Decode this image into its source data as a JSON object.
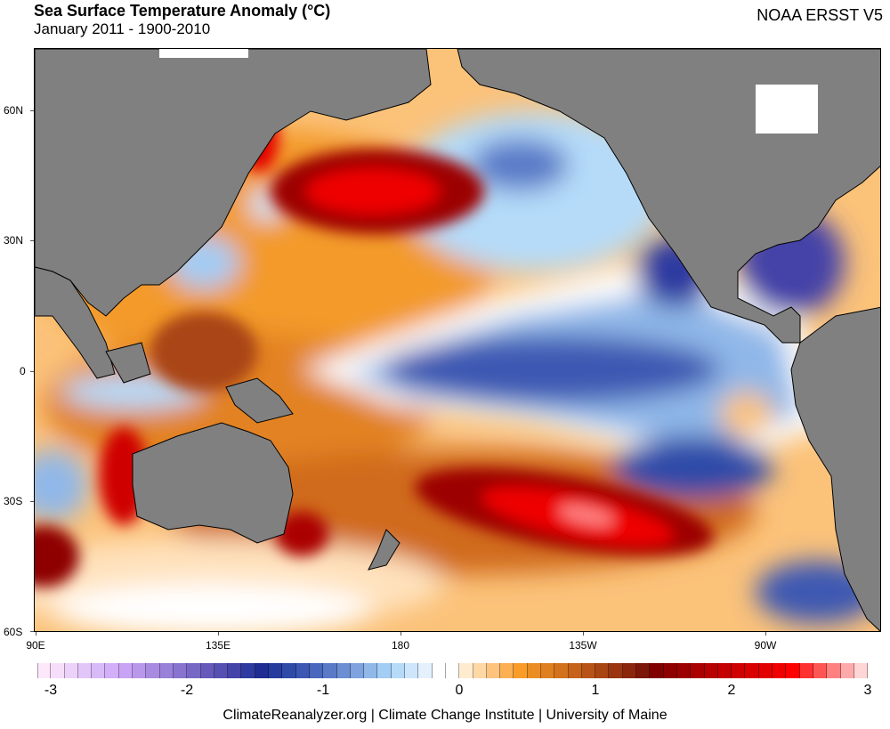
{
  "header": {
    "title": "Sea Surface Temperature Anomaly (°C)",
    "subtitle": "January 2011 - 1900-2010",
    "source": "NOAA ERSST V5"
  },
  "map": {
    "y_axis_labels": [
      "60N",
      "30N",
      "0",
      "30S",
      "60S"
    ],
    "x_axis_labels": [
      "90E",
      "135E",
      "180",
      "135W",
      "90W"
    ],
    "land_color": "#808080",
    "features": [
      {
        "name": "north-pacific-warm-anomaly",
        "value": 2.6
      },
      {
        "name": "south-pacific-warm-anomaly",
        "value": 3.0
      },
      {
        "name": "equatorial-pacific-cold-tongue",
        "value": -1.7
      },
      {
        "name": "sea-of-okhotsk-warm-anomaly",
        "value": 2.6
      },
      {
        "name": "west-australia-warm-anomaly",
        "value": 2.5
      },
      {
        "name": "gulf-of-mexico-cold-anomaly",
        "value": -1.8
      },
      {
        "name": "gulf-of-california-cold-anomaly",
        "value": -1.6
      },
      {
        "name": "southeast-pacific-cold-anomaly",
        "value": -1.6
      },
      {
        "name": "western-pacific-warm-pool",
        "value": 1.4
      }
    ]
  },
  "colorbar": {
    "min": -3,
    "max": 3,
    "tick_labels": [
      "-3",
      "-2",
      "-1",
      "0",
      "1",
      "2",
      "3"
    ],
    "colors": [
      "#fde8fa",
      "#f6defa",
      "#ecd2fa",
      "#e2c6f9",
      "#d9baf9",
      "#d2aff8",
      "#c9a4f6",
      "#b998ec",
      "#a98ae1",
      "#9980d8",
      "#8874cf",
      "#7768c5",
      "#6659bb",
      "#5550b2",
      "#4443a8",
      "#2f3aa0",
      "#1e2c93",
      "#253b9d",
      "#2f4ba8",
      "#3c58b2",
      "#4867bd",
      "#5a7ac8",
      "#6c8ed3",
      "#7ea3de",
      "#90b8e9",
      "#a2cdf5",
      "#b5dbf9",
      "#cde6fb",
      "#e4f1fd",
      "#ffffff",
      "#ffffff",
      "#ffeccf",
      "#ffd9a5",
      "#fec47e",
      "#fcb053",
      "#f99c28",
      "#ec8d23",
      "#e07f20",
      "#d4711d",
      "#c6621a",
      "#b85317",
      "#a94413",
      "#9a3510",
      "#8b260c",
      "#7c1608",
      "#800000",
      "#8e0000",
      "#9c0000",
      "#aa0000",
      "#b80000",
      "#c40000",
      "#cf0000",
      "#d90000",
      "#e30000",
      "#ee0000",
      "#ff0000",
      "#ff3030",
      "#ff5555",
      "#ff8080",
      "#ffaaaa",
      "#ffd5d5"
    ]
  },
  "footer": {
    "credit": "ClimateReanalyzer.org | Climate Change Institute | University of Maine"
  }
}
